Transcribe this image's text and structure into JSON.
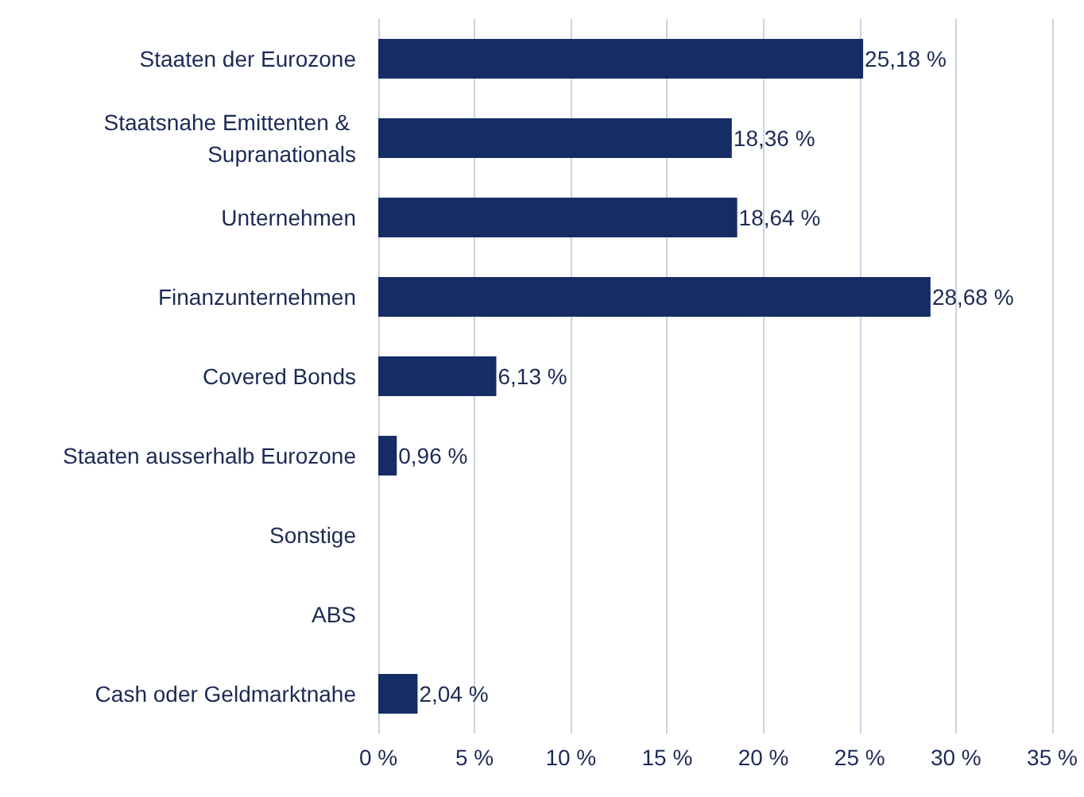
{
  "chart_data": {
    "type": "bar",
    "orientation": "horizontal",
    "categories": [
      "Staaten der Eurozone",
      "Staatsnahe Emittenten & Supranationals",
      "Unternehmen",
      "Finanzunternehmen",
      "Covered Bonds",
      "Staaten ausserhalb Eurozone",
      "Sonstige",
      "ABS",
      "Cash oder Geldmarktnahe"
    ],
    "values": [
      25.18,
      18.36,
      18.64,
      28.68,
      6.13,
      0.96,
      null,
      null,
      2.04
    ],
    "value_labels": [
      "25,18 %",
      "18,36 %",
      "18,64 %",
      "28,68 %",
      "6,13 %",
      "0,96 %",
      null,
      null,
      "2,04 %"
    ],
    "color": "#152c64",
    "xlim": [
      0,
      35
    ],
    "xticks": [
      {
        "value": 0,
        "label": "0 %"
      },
      {
        "value": 5,
        "label": "5 %"
      },
      {
        "value": 10,
        "label": "10 %"
      },
      {
        "value": 15,
        "label": "15 %"
      },
      {
        "value": 20,
        "label": "20 %"
      },
      {
        "value": 25,
        "label": "25 %"
      },
      {
        "value": 30,
        "label": "30 %"
      },
      {
        "value": 35,
        "label": "35 %"
      }
    ],
    "grid": "x"
  }
}
